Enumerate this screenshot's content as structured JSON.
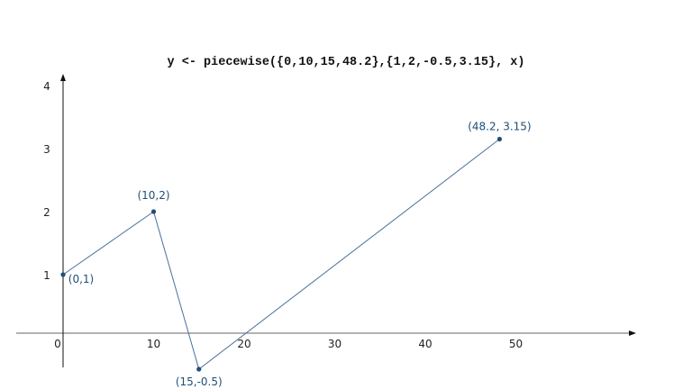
{
  "chart_data": {
    "type": "line",
    "title": "y <- piecewise({0,10,15,48.2},{1,2,-0.5,3.15}, x)",
    "xlabel": "",
    "ylabel": "",
    "x_ticks": [
      0,
      10,
      20,
      30,
      40,
      50
    ],
    "y_ticks": [
      1,
      2,
      3,
      4
    ],
    "x_tick_labels": [
      "0",
      "10",
      "20",
      "30",
      "40",
      "50"
    ],
    "y_tick_labels": [
      "1",
      "2",
      "3",
      "4"
    ],
    "grid": false,
    "points": [
      {
        "x": 0,
        "y": 1,
        "label": "(0,1)"
      },
      {
        "x": 10,
        "y": 2,
        "label": "(10,2)"
      },
      {
        "x": 15,
        "y": -0.5,
        "label": "(15,-0.5)"
      },
      {
        "x": 48.2,
        "y": 3.15,
        "label": "(48.2, 3.15)"
      }
    ],
    "colors": {
      "line": "#4a6f9a",
      "point": "#1f4e79",
      "label": "#1f4e79",
      "x_axis": "#999999",
      "y_axis": "#111111"
    }
  }
}
